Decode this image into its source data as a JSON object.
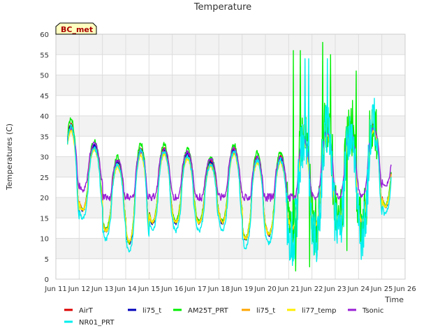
{
  "chart_data": {
    "type": "line",
    "title": "Temperature",
    "xlabel": "Time",
    "ylabel": "Temperatures (C)",
    "badge": "BC_met",
    "xlim": [
      11,
      26
    ],
    "ylim": [
      0,
      60
    ],
    "yticks": [
      0,
      5,
      10,
      15,
      20,
      25,
      30,
      35,
      40,
      45,
      50,
      55,
      60
    ],
    "xticks": [
      {
        "x": 11,
        "label": "Jun 11"
      },
      {
        "x": 12,
        "label": "Jun 12"
      },
      {
        "x": 13,
        "label": "Jun 13"
      },
      {
        "x": 14,
        "label": "Jun 14"
      },
      {
        "x": 15,
        "label": "Jun 15"
      },
      {
        "x": 16,
        "label": "Jun 16"
      },
      {
        "x": 17,
        "label": "Jun 17"
      },
      {
        "x": 18,
        "label": "Jun 18"
      },
      {
        "x": 19,
        "label": "Jun 19"
      },
      {
        "x": 20,
        "label": "Jun 20"
      },
      {
        "x": 21,
        "label": "Jun 21"
      },
      {
        "x": 22,
        "label": "Jun 22"
      },
      {
        "x": 23,
        "label": "Jun 23"
      },
      {
        "x": 24,
        "label": "Jun 24"
      },
      {
        "x": 25,
        "label": "Jun 25"
      },
      {
        "x": 26,
        "label": "Jun 26"
      }
    ],
    "grid": true,
    "x_range": [
      11.5,
      25.4
    ],
    "daily": [
      {
        "min": 13,
        "max": 38
      },
      {
        "min": 17,
        "max": 33
      },
      {
        "min": 12,
        "max": 29
      },
      {
        "min": 9,
        "max": 32
      },
      {
        "min": 14,
        "max": 32
      },
      {
        "min": 14,
        "max": 31
      },
      {
        "min": 14,
        "max": 29
      },
      {
        "min": 14,
        "max": 32
      },
      {
        "min": 10,
        "max": 30
      },
      {
        "min": 11,
        "max": 30
      },
      {
        "min": 12,
        "max": 35
      },
      {
        "min": 13,
        "max": 37
      },
      {
        "min": 14,
        "max": 37
      },
      {
        "min": 14,
        "max": 38
      },
      {
        "min": 18,
        "max": 34
      }
    ],
    "series": [
      {
        "name": "AirT",
        "color": "#dd0000",
        "offset": 0.0,
        "amp": 1.0,
        "noise": 0.4
      },
      {
        "name": "li75_t",
        "color": "#0000bb",
        "offset": -0.3,
        "amp": 1.0,
        "noise": 0.4
      },
      {
        "name": "AM25T_PRT",
        "color": "#00ee00",
        "offset": 0.5,
        "amp": 1.05,
        "noise": 0.6,
        "spikes": [
          [
            21.2,
            56
          ],
          [
            21.5,
            56
          ],
          [
            21.3,
            2
          ],
          [
            21.9,
            3
          ],
          [
            22.45,
            58
          ],
          [
            22.8,
            55
          ],
          [
            23.9,
            51
          ],
          [
            23.5,
            7
          ]
        ]
      },
      {
        "name": "li75_t",
        "color": "#ffa500",
        "offset": -0.5,
        "amp": 0.95,
        "noise": 0.4
      },
      {
        "name": "li77_temp",
        "color": "#ffee00",
        "offset": -0.8,
        "amp": 0.92,
        "noise": 0.4
      },
      {
        "name": "Tsonic",
        "color": "#9a1fd6",
        "offset": 2.5,
        "amp": 0.72,
        "noise": 0.5,
        "min_floor": 20
      },
      {
        "name": "NR01_PRT",
        "color": "#00eeee",
        "offset": -1.5,
        "amp": 1.08,
        "noise": 0.6,
        "spikes": [
          [
            21.7,
            54
          ],
          [
            21.85,
            54
          ],
          [
            22.65,
            54
          ],
          [
            21.25,
            5
          ],
          [
            22.1,
            7
          ]
        ]
      }
    ],
    "legend": [
      {
        "name": "AirT",
        "color": "#dd0000"
      },
      {
        "name": "li75_t",
        "color": "#0000bb"
      },
      {
        "name": "AM25T_PRT",
        "color": "#00ee00"
      },
      {
        "name": "li75_t",
        "color": "#ffa500"
      },
      {
        "name": "li77_temp",
        "color": "#ffee00"
      },
      {
        "name": "Tsonic",
        "color": "#9a1fd6"
      },
      {
        "name": "NR01_PRT",
        "color": "#00eeee"
      }
    ],
    "legend_placement": "bottom",
    "band_colors": [
      "#f2f2f2",
      "#ffffff"
    ],
    "grid_color": "#dddddd"
  }
}
